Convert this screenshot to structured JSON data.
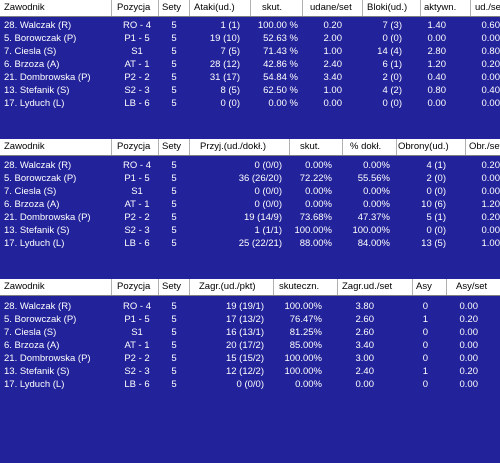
{
  "colors": {
    "background": "#22229a",
    "header_bg": "#ffffff",
    "header_text": "#000000",
    "text": "#ffffff"
  },
  "table1": {
    "headers": [
      "Zawodnik",
      "Pozycja",
      "Sety",
      "Ataki(ud.)",
      "skut.",
      "udane/set",
      "Bloki(ud.)",
      "aktywn.",
      "ud./set"
    ],
    "rows": [
      [
        "28. Walczak (R)",
        "RO - 4",
        "5",
        "1 (1)",
        "100.00 %",
        "0.20",
        "7 (3)",
        "1.40",
        "0.60"
      ],
      [
        "5. Borowczak (P)",
        "P1 - 5",
        "5",
        "19 (10)",
        "52.63 %",
        "2.00",
        "0 (0)",
        "0.00",
        "0.00"
      ],
      [
        "7. Ciesla (S)",
        "S1",
        "5",
        "7 (5)",
        "71.43 %",
        "1.00",
        "14 (4)",
        "2.80",
        "0.80"
      ],
      [
        "6. Brzoza (A)",
        "AT - 1",
        "5",
        "28 (12)",
        "42.86 %",
        "2.40",
        "6 (1)",
        "1.20",
        "0.20"
      ],
      [
        "21. Dombrowska (P)",
        "P2 - 2",
        "5",
        "31 (17)",
        "54.84 %",
        "3.40",
        "2 (0)",
        "0.40",
        "0.00"
      ],
      [
        "13. Stefanik (S)",
        "S2 - 3",
        "5",
        "8 (5)",
        "62.50 %",
        "1.00",
        "4 (2)",
        "0.80",
        "0.40"
      ],
      [
        "17. Lyduch (L)",
        "LB - 6",
        "5",
        "0 (0)",
        "0.00 %",
        "0.00",
        "0 (0)",
        "0.00",
        "0.00"
      ]
    ]
  },
  "table2": {
    "headers": [
      "Zawodnik",
      "Pozycja",
      "Sety",
      "Przyj.(ud./dokł.)",
      "skut.",
      "% dokł.",
      "Obrony(ud.)",
      "Obr./set"
    ],
    "rows": [
      [
        "28. Walczak (R)",
        "RO - 4",
        "5",
        "0 (0/0)",
        "0.00%",
        "0.00%",
        "4 (1)",
        "0.20"
      ],
      [
        "5. Borowczak (P)",
        "P1 - 5",
        "5",
        "36 (26/20)",
        "72.22%",
        "55.56%",
        "2 (0)",
        "0.00"
      ],
      [
        "7. Ciesla (S)",
        "S1",
        "5",
        "0 (0/0)",
        "0.00%",
        "0.00%",
        "0 (0)",
        "0.00"
      ],
      [
        "6. Brzoza (A)",
        "AT - 1",
        "5",
        "0 (0/0)",
        "0.00%",
        "0.00%",
        "10 (6)",
        "1.20"
      ],
      [
        "21. Dombrowska (P)",
        "P2 - 2",
        "5",
        "19 (14/9)",
        "73.68%",
        "47.37%",
        "5 (1)",
        "0.20"
      ],
      [
        "13. Stefanik (S)",
        "S2 - 3",
        "5",
        "1 (1/1)",
        "100.00%",
        "100.00%",
        "0 (0)",
        "0.00"
      ],
      [
        "17. Lyduch (L)",
        "LB - 6",
        "5",
        "25 (22/21)",
        "88.00%",
        "84.00%",
        "13 (5)",
        "1.00"
      ]
    ]
  },
  "table3": {
    "headers": [
      "Zawodnik",
      "Pozycja",
      "Sety",
      "Zagr.(ud./pkt)",
      "skuteczn.",
      "Zagr.ud./set",
      "Asy",
      "Asy/set"
    ],
    "rows": [
      [
        "28. Walczak (R)",
        "RO - 4",
        "5",
        "19 (19/1)",
        "100.00%",
        "3.80",
        "0",
        "0.00"
      ],
      [
        "5. Borowczak (P)",
        "P1 - 5",
        "5",
        "17 (13/2)",
        "76.47%",
        "2.60",
        "1",
        "0.20"
      ],
      [
        "7. Ciesla (S)",
        "S1",
        "5",
        "16 (13/1)",
        "81.25%",
        "2.60",
        "0",
        "0.00"
      ],
      [
        "6. Brzoza (A)",
        "AT - 1",
        "5",
        "20 (17/2)",
        "85.00%",
        "3.40",
        "0",
        "0.00"
      ],
      [
        "21. Dombrowska (P)",
        "P2 - 2",
        "5",
        "15 (15/2)",
        "100.00%",
        "3.00",
        "0",
        "0.00"
      ],
      [
        "13. Stefanik (S)",
        "S2 - 3",
        "5",
        "12 (12/2)",
        "100.00%",
        "2.40",
        "1",
        "0.20"
      ],
      [
        "17. Lyduch (L)",
        "LB - 6",
        "5",
        "0 (0/0)",
        "0.00%",
        "0.00",
        "0",
        "0.00"
      ]
    ]
  }
}
